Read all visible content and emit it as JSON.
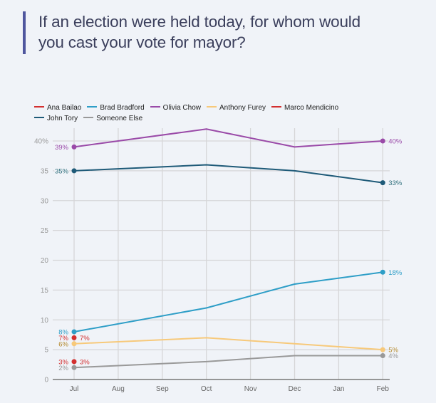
{
  "header": {
    "title_line1": "If an election were held today, for whom would",
    "title_line2": "you cast your vote for mayor?"
  },
  "chart_data": {
    "type": "line",
    "title": "If an election were held today, for whom would you cast your vote for mayor?",
    "xlabel": "",
    "ylabel": "",
    "x": [
      "Jul",
      "Aug",
      "Sep",
      "Oct",
      "Nov",
      "Dec",
      "Jan",
      "Feb"
    ],
    "ylim": [
      0,
      40
    ],
    "yticks": [
      {
        "value": 0,
        "label": "0"
      },
      {
        "value": 5,
        "label": "5"
      },
      {
        "value": 10,
        "label": "10"
      },
      {
        "value": 15,
        "label": "15"
      },
      {
        "value": 20,
        "label": "20"
      },
      {
        "value": 25,
        "label": "25"
      },
      {
        "value": 30,
        "label": "30"
      },
      {
        "value": 35,
        "label": "35"
      },
      {
        "value": 40,
        "label": "40%"
      }
    ],
    "grid": true,
    "legend_position": "top",
    "series": [
      {
        "name": "Ana Bailao",
        "color": "#d32f2f",
        "points": [
          {
            "x": "Jul",
            "y": 3
          }
        ],
        "labels": [
          {
            "x": "Jul",
            "text": "3%",
            "side": "both"
          }
        ]
      },
      {
        "name": "Brad Bradford",
        "color": "#2e9ec7",
        "points": [
          {
            "x": "Jul",
            "y": 8
          },
          {
            "x": "Oct",
            "y": 12
          },
          {
            "x": "Dec",
            "y": 16
          },
          {
            "x": "Feb",
            "y": 18
          }
        ],
        "labels": [
          {
            "x": "Jul",
            "text": "8%",
            "side": "left"
          },
          {
            "x": "Feb",
            "text": "18%",
            "side": "right"
          }
        ]
      },
      {
        "name": "Olivia Chow",
        "color": "#9a4aa8",
        "points": [
          {
            "x": "Jul",
            "y": 39
          },
          {
            "x": "Oct",
            "y": 42
          },
          {
            "x": "Dec",
            "y": 39
          },
          {
            "x": "Feb",
            "y": 40
          }
        ],
        "labels": [
          {
            "x": "Jul",
            "text": "39%",
            "side": "left"
          },
          {
            "x": "Feb",
            "text": "40%",
            "side": "right"
          }
        ]
      },
      {
        "name": "Anthony Furey",
        "color": "#f7c97a",
        "points": [
          {
            "x": "Jul",
            "y": 6
          },
          {
            "x": "Oct",
            "y": 7
          },
          {
            "x": "Dec",
            "y": 6
          },
          {
            "x": "Feb",
            "y": 5
          }
        ],
        "labels": [
          {
            "x": "Jul",
            "text": "6%",
            "side": "left"
          },
          {
            "x": "Feb",
            "text": "5%",
            "side": "right"
          }
        ],
        "label_color": "#b58a2e"
      },
      {
        "name": "Marco Mendicino",
        "color": "#d32f2f",
        "points": [
          {
            "x": "Jul",
            "y": 7
          }
        ],
        "labels": [
          {
            "x": "Jul",
            "text": "7%",
            "side": "both"
          }
        ]
      },
      {
        "name": "John Tory",
        "color": "#1e5a78",
        "points": [
          {
            "x": "Jul",
            "y": 35
          },
          {
            "x": "Oct",
            "y": 36
          },
          {
            "x": "Dec",
            "y": 35
          },
          {
            "x": "Feb",
            "y": 33
          }
        ],
        "labels": [
          {
            "x": "Jul",
            "text": "35%",
            "side": "left"
          },
          {
            "x": "Feb",
            "text": "33%",
            "side": "right"
          }
        ],
        "label_color": "#2f6f7c"
      },
      {
        "name": "Someone Else",
        "color": "#999999",
        "points": [
          {
            "x": "Jul",
            "y": 2
          },
          {
            "x": "Oct",
            "y": 3
          },
          {
            "x": "Dec",
            "y": 4
          },
          {
            "x": "Feb",
            "y": 4
          }
        ],
        "labels": [
          {
            "x": "Jul",
            "text": "2%",
            "side": "left"
          },
          {
            "x": "Feb",
            "text": "4%",
            "side": "right"
          }
        ]
      }
    ]
  }
}
